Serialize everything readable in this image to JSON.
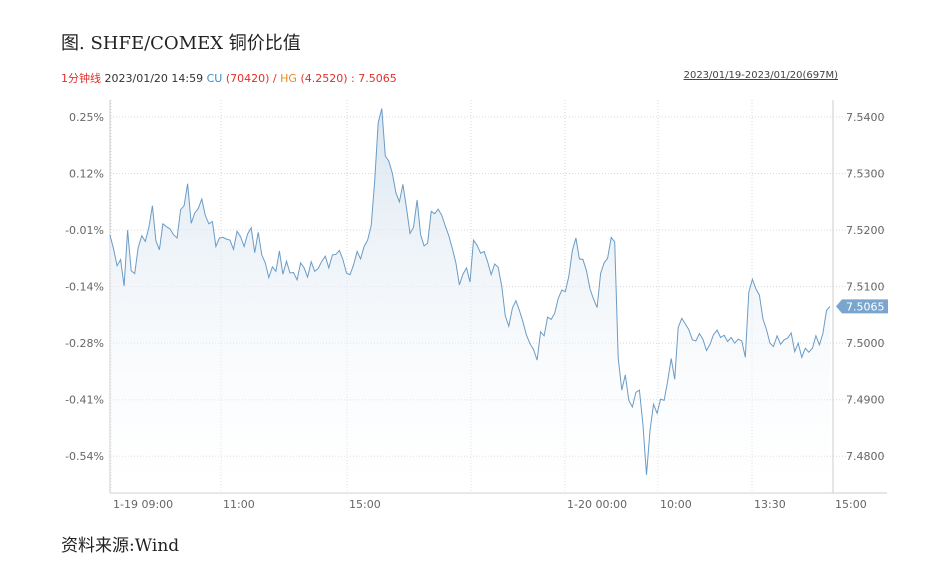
{
  "figure": {
    "title": "图. SHFE/COMEX 铜价比值",
    "source": "资料来源:Wind"
  },
  "info_bar": {
    "interval": "1分钟线",
    "timestamp": "2023/01/20 14:59",
    "cu_label": "CU",
    "cu_value": "(70420)",
    "separator": "/",
    "hg_label": "HG",
    "hg_value": "(4.2520)",
    "ratio_text": ": 7.5065",
    "range": "2023/01/19-2023/01/20(697M)"
  },
  "colors": {
    "line": "#6a9cc6",
    "area_top": "#d6e3ef",
    "grid": "#d8d8d8",
    "price_tag_bg": "#7aa5cd"
  },
  "chart_data": {
    "type": "area",
    "title": "",
    "xlabel": "",
    "ylabel": "",
    "grid": true,
    "x_ticks": [
      "1-19 09:00",
      "11:00",
      "15:00",
      "1-20 00:00",
      "10:00",
      "13:30",
      "15:00"
    ],
    "left_axis_ticks": [
      "0.25%",
      "0.12%",
      "-0.01%",
      "-0.14%",
      "-0.28%",
      "-0.41%",
      "-0.54%"
    ],
    "right_axis_ticks": [
      "7.5400",
      "7.5300",
      "7.5200",
      "7.5100",
      "7.5000",
      "7.4900",
      "7.4800"
    ],
    "ylim": [
      7.4735,
      7.543
    ],
    "last_value_label": "7.5065",
    "series": [
      {
        "values": [
          7.5191,
          7.5167,
          7.5137,
          7.5148,
          7.5101,
          7.52,
          7.5128,
          7.5123,
          7.5169,
          7.519,
          7.518,
          7.5204,
          7.5243,
          7.5181,
          7.5165,
          7.5211,
          7.5206,
          7.5202,
          7.5192,
          7.5186,
          7.5236,
          7.5243,
          7.5282,
          7.5212,
          7.523,
          7.5238,
          7.5255,
          7.5226,
          7.5211,
          7.5215,
          7.5171,
          7.5186,
          7.5187,
          7.5184,
          7.5182,
          7.5166,
          7.5198,
          7.5188,
          7.5171,
          7.5193,
          7.5204,
          7.516,
          7.5196,
          7.5156,
          7.5142,
          7.5116,
          7.5135,
          7.5127,
          7.5163,
          7.5122,
          7.5145,
          7.5124,
          7.5125,
          7.5112,
          7.5142,
          7.5133,
          7.5117,
          7.5144,
          7.5127,
          7.5132,
          7.5145,
          7.5154,
          7.5133,
          7.5156,
          7.5157,
          7.5164,
          7.5148,
          7.5124,
          7.5121,
          7.5138,
          7.5162,
          7.5149,
          7.5171,
          7.5182,
          7.5208,
          7.5287,
          7.539,
          7.5415,
          7.5331,
          7.5322,
          7.53,
          7.5266,
          7.525,
          7.5281,
          7.5239,
          7.5194,
          7.5205,
          7.5253,
          7.5192,
          7.5172,
          7.5177,
          7.5233,
          7.5229,
          7.5237,
          7.5226,
          7.5207,
          7.519,
          7.5167,
          7.5142,
          7.5103,
          7.5122,
          7.5133,
          7.5108,
          7.5182,
          7.5173,
          7.5159,
          7.5162,
          7.5144,
          7.5121,
          7.514,
          7.5134,
          7.51,
          7.5048,
          7.503,
          7.5062,
          7.5075,
          7.5058,
          7.5038,
          7.5014,
          7.4999,
          7.4989,
          7.497,
          7.502,
          7.5013,
          7.5046,
          7.5042,
          7.5053,
          7.5079,
          7.5094,
          7.5091,
          7.5118,
          7.5164,
          7.5186,
          7.5149,
          7.5148,
          7.5128,
          7.5096,
          7.5078,
          7.5063,
          7.5123,
          7.5142,
          7.515,
          7.5187,
          7.5179,
          7.4974,
          7.4917,
          7.4944,
          7.4899,
          7.4887,
          7.4913,
          7.4917,
          7.4857,
          7.4767,
          7.4845,
          7.4892,
          7.4876,
          7.4901,
          7.4899,
          7.4932,
          7.4973,
          7.4936,
          7.5028,
          7.5044,
          7.5034,
          7.5024,
          7.5006,
          7.5004,
          7.5017,
          7.5007,
          7.4987,
          7.4998,
          7.5015,
          7.5023,
          7.501,
          7.5014,
          7.5003,
          7.501,
          7.5,
          7.5007,
          7.5004,
          7.4975,
          7.509,
          7.5113,
          7.5096,
          7.5085,
          7.5043,
          7.5024,
          7.5,
          7.4994,
          7.5013,
          7.4998,
          7.5006,
          7.5009,
          7.5018,
          7.4985,
          7.5,
          7.4975,
          7.4991,
          7.4984,
          7.4991,
          7.5013,
          7.4997,
          7.5017,
          7.5058,
          7.5065
        ]
      }
    ]
  }
}
